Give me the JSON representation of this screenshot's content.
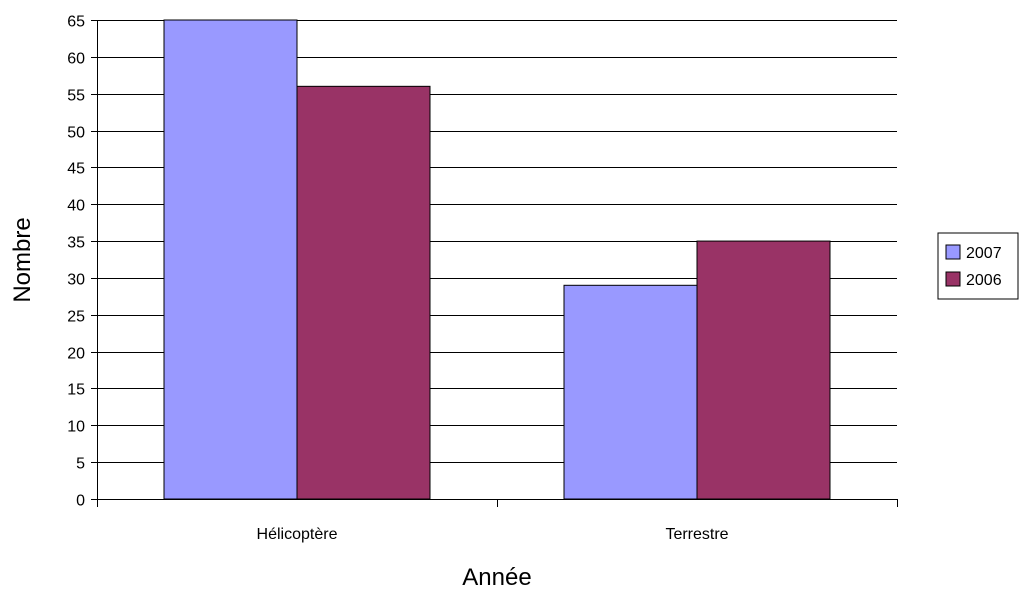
{
  "chart_data": {
    "type": "bar",
    "title": "",
    "xlabel": "Année",
    "ylabel": "Nombre",
    "categories": [
      "Hélicoptère",
      "Terrestre"
    ],
    "series": [
      {
        "name": "2007",
        "values": [
          65,
          29
        ],
        "color": "#9999ff"
      },
      {
        "name": "2006",
        "values": [
          56,
          35
        ],
        "color": "#993366"
      }
    ],
    "ylim": [
      0,
      65
    ],
    "ytick_step": 5,
    "grid": true,
    "legend_position": "right"
  }
}
